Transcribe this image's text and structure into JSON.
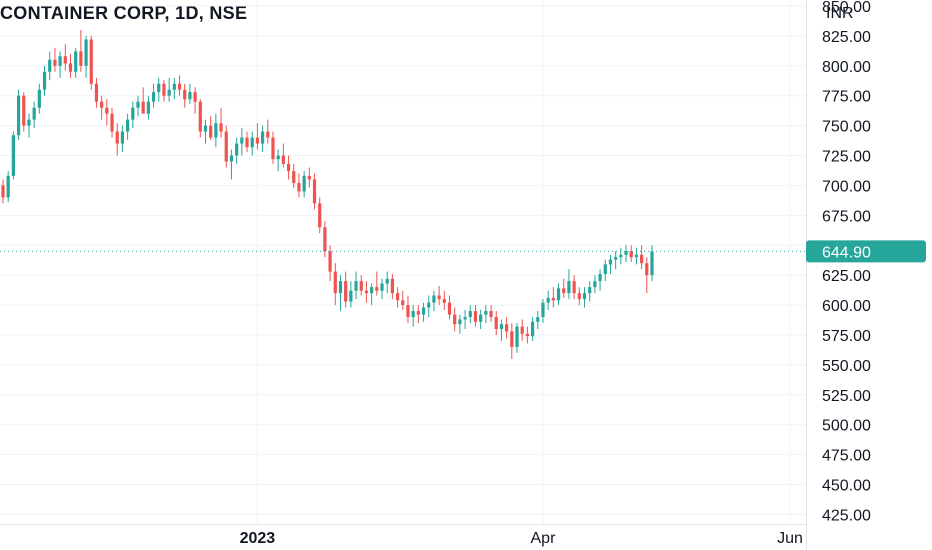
{
  "header": {
    "title": "CONTAINER CORP, 1D, NSE"
  },
  "chart_data": {
    "type": "candlestick",
    "title": "CONTAINER CORP, 1D, NSE",
    "currency": "INR",
    "last_price": "644.90",
    "y_ticks": [
      "850.00",
      "825.00",
      "800.00",
      "775.00",
      "750.00",
      "725.00",
      "700.00",
      "675.00",
      "650.00",
      "625.00",
      "600.00",
      "575.00",
      "550.00",
      "525.00",
      "500.00",
      "475.00",
      "450.00",
      "425.00"
    ],
    "ylim": [
      417,
      855
    ],
    "x_ticks": [
      "2023",
      "Apr",
      "Jun"
    ],
    "colors": {
      "up": "#26a69a",
      "down": "#ef5350",
      "text": "#131722",
      "grid": "#f0f3fa",
      "badge": "#26a69a"
    },
    "candles": [
      [
        700,
        705,
        685,
        690
      ],
      [
        690,
        712,
        686,
        708
      ],
      [
        708,
        745,
        705,
        742
      ],
      [
        742,
        780,
        738,
        775
      ],
      [
        775,
        778,
        745,
        750
      ],
      [
        750,
        760,
        740,
        755
      ],
      [
        755,
        770,
        748,
        765
      ],
      [
        765,
        785,
        760,
        780
      ],
      [
        780,
        800,
        775,
        795
      ],
      [
        795,
        812,
        788,
        805
      ],
      [
        805,
        815,
        795,
        800
      ],
      [
        800,
        812,
        790,
        808
      ],
      [
        808,
        818,
        796,
        802
      ],
      [
        802,
        810,
        790,
        795
      ],
      [
        795,
        815,
        790,
        812
      ],
      [
        812,
        830,
        795,
        800
      ],
      [
        800,
        825,
        790,
        822
      ],
      [
        822,
        825,
        780,
        785
      ],
      [
        785,
        790,
        765,
        770
      ],
      [
        770,
        775,
        755,
        765
      ],
      [
        765,
        772,
        750,
        760
      ],
      [
        760,
        765,
        740,
        745
      ],
      [
        745,
        752,
        725,
        735
      ],
      [
        735,
        750,
        728,
        745
      ],
      [
        745,
        760,
        738,
        755
      ],
      [
        755,
        770,
        748,
        765
      ],
      [
        765,
        775,
        758,
        770
      ],
      [
        770,
        782,
        762,
        760
      ],
      [
        760,
        775,
        755,
        770
      ],
      [
        770,
        785,
        765,
        778
      ],
      [
        778,
        790,
        770,
        785
      ],
      [
        785,
        788,
        770,
        775
      ],
      [
        775,
        790,
        770,
        780
      ],
      [
        780,
        790,
        772,
        785
      ],
      [
        785,
        792,
        775,
        780
      ],
      [
        780,
        785,
        765,
        772
      ],
      [
        772,
        785,
        768,
        778
      ],
      [
        778,
        782,
        760,
        770
      ],
      [
        770,
        772,
        740,
        745
      ],
      [
        745,
        755,
        735,
        750
      ],
      [
        750,
        758,
        738,
        740
      ],
      [
        740,
        760,
        732,
        752
      ],
      [
        752,
        765,
        740,
        745
      ],
      [
        745,
        750,
        715,
        720
      ],
      [
        720,
        730,
        705,
        725
      ],
      [
        725,
        740,
        718,
        735
      ],
      [
        735,
        748,
        725,
        740
      ],
      [
        740,
        745,
        728,
        732
      ],
      [
        732,
        745,
        725,
        740
      ],
      [
        740,
        752,
        730,
        735
      ],
      [
        735,
        750,
        728,
        745
      ],
      [
        745,
        755,
        735,
        740
      ],
      [
        740,
        745,
        718,
        722
      ],
      [
        722,
        730,
        712,
        725
      ],
      [
        725,
        735,
        715,
        718
      ],
      [
        718,
        725,
        705,
        712
      ],
      [
        712,
        718,
        698,
        702
      ],
      [
        702,
        710,
        690,
        695
      ],
      [
        695,
        712,
        690,
        708
      ],
      [
        708,
        715,
        698,
        705
      ],
      [
        705,
        710,
        680,
        685
      ],
      [
        685,
        690,
        660,
        665
      ],
      [
        665,
        670,
        640,
        645
      ],
      [
        645,
        650,
        620,
        628
      ],
      [
        628,
        635,
        600,
        610
      ],
      [
        610,
        625,
        595,
        620
      ],
      [
        620,
        628,
        598,
        603
      ],
      [
        603,
        620,
        598,
        612
      ],
      [
        612,
        628,
        605,
        620
      ],
      [
        620,
        625,
        608,
        612
      ],
      [
        612,
        620,
        602,
        610
      ],
      [
        610,
        618,
        600,
        615
      ],
      [
        615,
        628,
        608,
        612
      ],
      [
        612,
        622,
        605,
        618
      ],
      [
        618,
        628,
        610,
        622
      ],
      [
        622,
        626,
        605,
        610
      ],
      [
        610,
        615,
        598,
        604
      ],
      [
        604,
        612,
        596,
        600
      ],
      [
        600,
        608,
        585,
        590
      ],
      [
        590,
        600,
        582,
        595
      ],
      [
        595,
        600,
        585,
        592
      ],
      [
        592,
        602,
        586,
        598
      ],
      [
        598,
        608,
        590,
        602
      ],
      [
        602,
        612,
        595,
        608
      ],
      [
        608,
        616,
        600,
        605
      ],
      [
        605,
        612,
        596,
        602
      ],
      [
        602,
        608,
        588,
        592
      ],
      [
        592,
        598,
        578,
        584
      ],
      [
        584,
        592,
        576,
        588
      ],
      [
        588,
        596,
        580,
        590
      ],
      [
        590,
        600,
        585,
        595
      ],
      [
        595,
        600,
        582,
        586
      ],
      [
        586,
        596,
        580,
        592
      ],
      [
        592,
        600,
        585,
        595
      ],
      [
        595,
        600,
        586,
        590
      ],
      [
        590,
        595,
        575,
        580
      ],
      [
        580,
        588,
        570,
        584
      ],
      [
        584,
        590,
        572,
        578
      ],
      [
        578,
        585,
        555,
        565
      ],
      [
        565,
        585,
        560,
        582
      ],
      [
        582,
        588,
        570,
        576
      ],
      [
        576,
        582,
        568,
        574
      ],
      [
        574,
        590,
        570,
        586
      ],
      [
        586,
        595,
        580,
        590
      ],
      [
        590,
        605,
        585,
        602
      ],
      [
        602,
        612,
        596,
        606
      ],
      [
        606,
        615,
        598,
        604
      ],
      [
        604,
        618,
        600,
        614
      ],
      [
        614,
        622,
        606,
        610
      ],
      [
        610,
        630,
        605,
        620
      ],
      [
        620,
        625,
        605,
        610
      ],
      [
        610,
        615,
        600,
        605
      ],
      [
        605,
        615,
        598,
        610
      ],
      [
        610,
        620,
        603,
        615
      ],
      [
        615,
        625,
        610,
        620
      ],
      [
        620,
        630,
        612,
        626
      ],
      [
        626,
        638,
        620,
        634
      ],
      [
        634,
        642,
        626,
        638
      ],
      [
        638,
        645,
        630,
        640
      ],
      [
        640,
        648,
        634,
        642
      ],
      [
        642,
        650,
        636,
        645
      ],
      [
        645,
        650,
        636,
        640
      ],
      [
        640,
        648,
        634,
        642
      ],
      [
        642,
        650,
        630,
        635
      ],
      [
        635,
        640,
        610,
        625
      ],
      [
        625,
        650,
        620,
        644.9
      ]
    ],
    "first_2023_candle_index": 49,
    "first_april_candle_index": 104
  }
}
